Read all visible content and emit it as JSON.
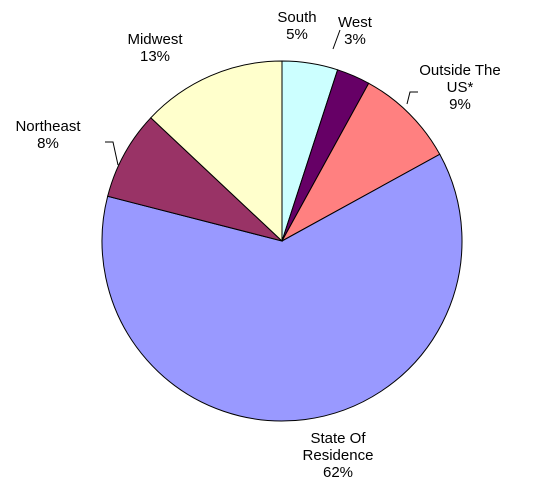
{
  "chart_data": {
    "type": "pie",
    "title": "",
    "start_angle_deg": 0,
    "direction": "clockwise",
    "slices": [
      {
        "label": "South",
        "label_lines": [
          "South"
        ],
        "value": 5,
        "value_text": "5%",
        "color": "#CCFFFF"
      },
      {
        "label": "West",
        "label_lines": [
          "West"
        ],
        "value": 3,
        "value_text": "3%",
        "color": "#660066"
      },
      {
        "label": "Outside The US*",
        "label_lines": [
          "Outside The",
          "US*"
        ],
        "value": 9,
        "value_text": "9%",
        "color": "#FF8080"
      },
      {
        "label": "State Of Residence",
        "label_lines": [
          "State Of",
          "Residence"
        ],
        "value": 62,
        "value_text": "62%",
        "color": "#9999FF"
      },
      {
        "label": "Northeast",
        "label_lines": [
          "Northeast"
        ],
        "value": 8,
        "value_text": "8%",
        "color": "#993366"
      },
      {
        "label": "Midwest",
        "label_lines": [
          "Midwest"
        ],
        "value": 13,
        "value_text": "13%",
        "color": "#FFFFCC"
      }
    ]
  }
}
